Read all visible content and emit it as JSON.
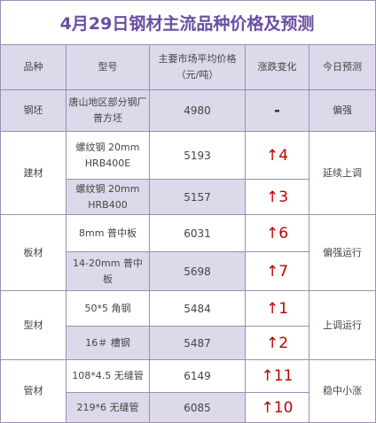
{
  "title": "4月29日钢材主流品种价格及预测",
  "headers": {
    "category": "品种",
    "model": "型号",
    "price_line1": "主要市场平均价格",
    "price_line2": "（元/吨）",
    "change": "涨跌变化",
    "forecast": "今日预测"
  },
  "rows": {
    "billet": {
      "category": "钢坯",
      "model": "唐山地区部分钢厂普方坯",
      "price": "4980",
      "change": "-",
      "forecast": "偏强"
    },
    "construction": {
      "category": "建材",
      "forecast": "延续上调",
      "items": [
        {
          "model": "螺纹钢 20mm HRB400E",
          "price": "5193",
          "arrow": "↑",
          "change": "4"
        },
        {
          "model": "螺纹钢 20mm HRB400",
          "price": "5157",
          "arrow": "↑",
          "change": "3"
        }
      ]
    },
    "plate": {
      "category": "板材",
      "forecast": "偏强运行",
      "items": [
        {
          "model": "8mm 普中板",
          "price": "6031",
          "arrow": "↑",
          "change": "6"
        },
        {
          "model": "14-20mm 普中板",
          "price": "5698",
          "arrow": "↑",
          "change": "7"
        }
      ]
    },
    "section": {
      "category": "型材",
      "forecast": "上调运行",
      "items": [
        {
          "model": "50*5 角钢",
          "price": "5484",
          "arrow": "↑",
          "change": "1"
        },
        {
          "model": "16＃ 槽钢",
          "price": "5487",
          "arrow": "↑",
          "change": "2"
        }
      ]
    },
    "pipe": {
      "category": "管材",
      "forecast": "稳中小涨",
      "items": [
        {
          "model": "108*4.5 无缝管",
          "price": "6149",
          "arrow": "↑",
          "change": "11"
        },
        {
          "model": "219*6 无缝管",
          "price": "6085",
          "arrow": "↑",
          "change": "10"
        }
      ]
    }
  },
  "colors": {
    "title": "#6a4fa0",
    "header_bg": "#ddd9ea",
    "border": "#9a8fb3",
    "up": "#c00000"
  }
}
